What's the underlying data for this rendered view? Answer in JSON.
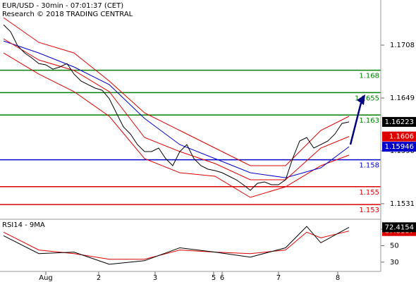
{
  "chart_data": [
    {
      "type": "line",
      "title": "EUR/USD - 30min - 07:01:37 (CET)",
      "subtitle": "Research © 2018 TRADING CENTRAL",
      "xlim": [
        -0.5,
        53.5
      ],
      "ylim": [
        1.15144,
        1.17584
      ],
      "yticks": [
        1.1531,
        {
          "value": 1.159,
          "label": "1.1590"
        },
        1.1649,
        1.1708
      ],
      "levels": [
        {
          "value": 1.168,
          "color": "#008000"
        },
        {
          "value": 1.1655,
          "color": "#008000"
        },
        {
          "value": 1.163,
          "color": "#008000"
        },
        {
          "value": 1.158,
          "color": "#0000cc"
        },
        {
          "value": 1.155,
          "color": "#dd0000"
        },
        {
          "value": 1.153,
          "color": "#dd0000"
        }
      ],
      "series": [
        {
          "color": "#dd0000",
          "marker_box": false,
          "x": [
            0,
            5,
            10,
            15,
            20,
            25,
            30,
            35,
            40,
            45,
            49
          ],
          "values": [
            1.17387,
            1.17111,
            1.16993,
            1.16679,
            1.16324,
            1.16128,
            1.15931,
            1.15734,
            1.15734,
            1.16128,
            1.16285
          ]
        },
        {
          "color": "#dd0000",
          "marker_box": false,
          "x": [
            0,
            5,
            10,
            15,
            20,
            25,
            30,
            35,
            40,
            45,
            49
          ],
          "values": [
            1.16993,
            1.16757,
            1.16561,
            1.16285,
            1.15813,
            1.15656,
            1.15616,
            1.1538,
            1.15498,
            1.15734,
            1.15852
          ]
        },
        {
          "color": "#0000cc",
          "marker_box": true,
          "x": [
            0,
            5,
            10,
            15,
            20,
            25,
            30,
            35,
            40,
            45,
            49
          ],
          "values": [
            1.17127,
            1.16993,
            1.16836,
            1.16639,
            1.16262,
            1.1597,
            1.15813,
            1.15656,
            1.156,
            1.15711,
            1.15946
          ]
        },
        {
          "color": "#dd0000",
          "marker_box": true,
          "x": [
            0,
            5,
            10,
            15,
            20,
            25,
            30,
            35,
            40,
            45,
            49
          ],
          "values": [
            1.17151,
            1.16915,
            1.16797,
            1.16561,
            1.16049,
            1.15892,
            1.15758,
            1.15577,
            1.15577,
            1.15931,
            1.1606
          ]
        },
        {
          "color": "#000000",
          "marker_box": true,
          "x": [
            0,
            1,
            2,
            3,
            4,
            5,
            6,
            7,
            8,
            9,
            10,
            11,
            12,
            13,
            14,
            15,
            16,
            17,
            18,
            19,
            20,
            21,
            22,
            23,
            24,
            25,
            26,
            27,
            28,
            29,
            30,
            31,
            32,
            33,
            34,
            35,
            36,
            37,
            38,
            39,
            40,
            41,
            42,
            43,
            44,
            45,
            46,
            47,
            48,
            49
          ],
          "values": [
            1.17308,
            1.1723,
            1.17072,
            1.16993,
            1.16938,
            1.16875,
            1.1686,
            1.16812,
            1.16836,
            1.16875,
            1.16757,
            1.16679,
            1.16639,
            1.166,
            1.16576,
            1.16482,
            1.16324,
            1.16167,
            1.16088,
            1.1597,
            1.15892,
            1.15892,
            1.15931,
            1.15813,
            1.15734,
            1.15892,
            1.1597,
            1.15813,
            1.15734,
            1.15695,
            1.15679,
            1.15656,
            1.15616,
            1.15577,
            1.15522,
            1.15459,
            1.15537,
            1.15553,
            1.15522,
            1.15522,
            1.15577,
            1.15813,
            1.1601,
            1.16049,
            1.15931,
            1.1597,
            1.1601,
            1.16088,
            1.16206,
            1.16223
          ]
        }
      ]
    },
    {
      "type": "line",
      "title": "RSI14 - 9MA",
      "xlim": [
        -0.5,
        53.5
      ],
      "ylim": [
        18.7,
        81.3
      ],
      "yticks": [
        30,
        50,
        70
      ],
      "xticks": [
        {
          "value": 6,
          "label": "Aug"
        },
        {
          "value": 13.5,
          "label": "2"
        },
        {
          "value": 21.5,
          "label": "3"
        },
        {
          "value": 29.8,
          "label": "5"
        },
        {
          "value": 31,
          "label": "6"
        },
        {
          "value": 39,
          "label": "7"
        },
        {
          "value": 47.4,
          "label": "8"
        }
      ],
      "series": [
        {
          "color": "#dd0000",
          "marker_box": true,
          "x": [
            0,
            5,
            10,
            15,
            20,
            25,
            30,
            35,
            40,
            43,
            45,
            49
          ],
          "values": [
            66.5,
            44.8,
            40.4,
            33.5,
            33.5,
            44.8,
            42.2,
            40.4,
            44.8,
            66.5,
            59.6,
            67.8107
          ]
        },
        {
          "color": "#000000",
          "marker_box": true,
          "x": [
            0,
            5,
            10,
            15,
            20,
            25,
            30,
            35,
            40,
            43,
            45,
            49
          ],
          "values": [
            62.2,
            40.4,
            42.2,
            27.4,
            31.7,
            47.4,
            42.2,
            36.1,
            47.4,
            73.5,
            53.5,
            72.4154
          ]
        }
      ]
    }
  ]
}
